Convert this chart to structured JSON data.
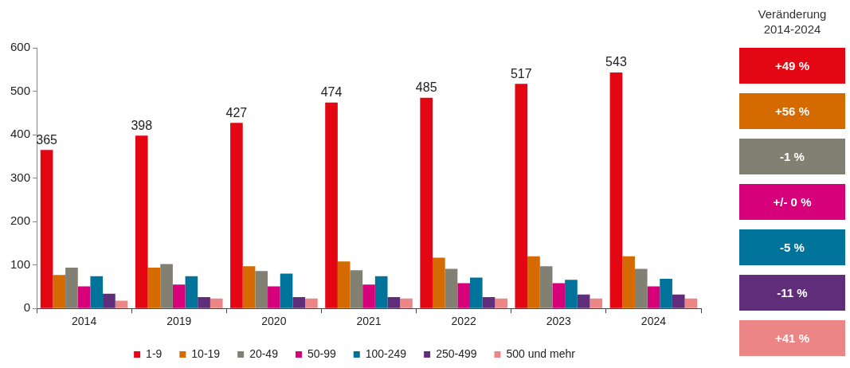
{
  "chart_data": [
    {
      "type": "bar",
      "categories": [
        "2014",
        "2019",
        "2020",
        "2021",
        "2022",
        "2023",
        "2024"
      ],
      "ylim": [
        0,
        600
      ],
      "yticks": [
        0,
        100,
        200,
        300,
        400,
        500,
        600
      ],
      "legend": "bottom",
      "grid": false,
      "series": [
        {
          "name": "1-9",
          "color": "#e30613",
          "values": [
            365,
            398,
            427,
            474,
            485,
            517,
            543
          ],
          "value_labels": [
            "365",
            "398",
            "427",
            "474",
            "485",
            "517",
            "543"
          ]
        },
        {
          "name": "10-19",
          "color": "#d46a00",
          "values": [
            77,
            94,
            97,
            108,
            117,
            120,
            120
          ]
        },
        {
          "name": "20-49",
          "color": "#828073",
          "values": [
            94,
            102,
            86,
            88,
            91,
            97,
            91
          ]
        },
        {
          "name": "50-99",
          "color": "#d6007a",
          "values": [
            51,
            55,
            51,
            55,
            58,
            58,
            51
          ]
        },
        {
          "name": "100-249",
          "color": "#00739a",
          "values": [
            74,
            74,
            80,
            74,
            71,
            66,
            68
          ]
        },
        {
          "name": "250-499",
          "color": "#5f2d7a",
          "values": [
            34,
            26,
            26,
            26,
            26,
            32,
            32
          ]
        },
        {
          "name": "500 und mehr",
          "color": "#ec8585",
          "values": [
            18,
            23,
            23,
            23,
            23,
            23,
            23
          ]
        }
      ]
    },
    {
      "type": "other",
      "title": "Veränderung 2014-2024",
      "annotations": [
        "+49 %",
        "+56 %",
        "-1 %",
        "+/- 0 %",
        "-5 %",
        "-11 %",
        "+41 %"
      ]
    }
  ]
}
